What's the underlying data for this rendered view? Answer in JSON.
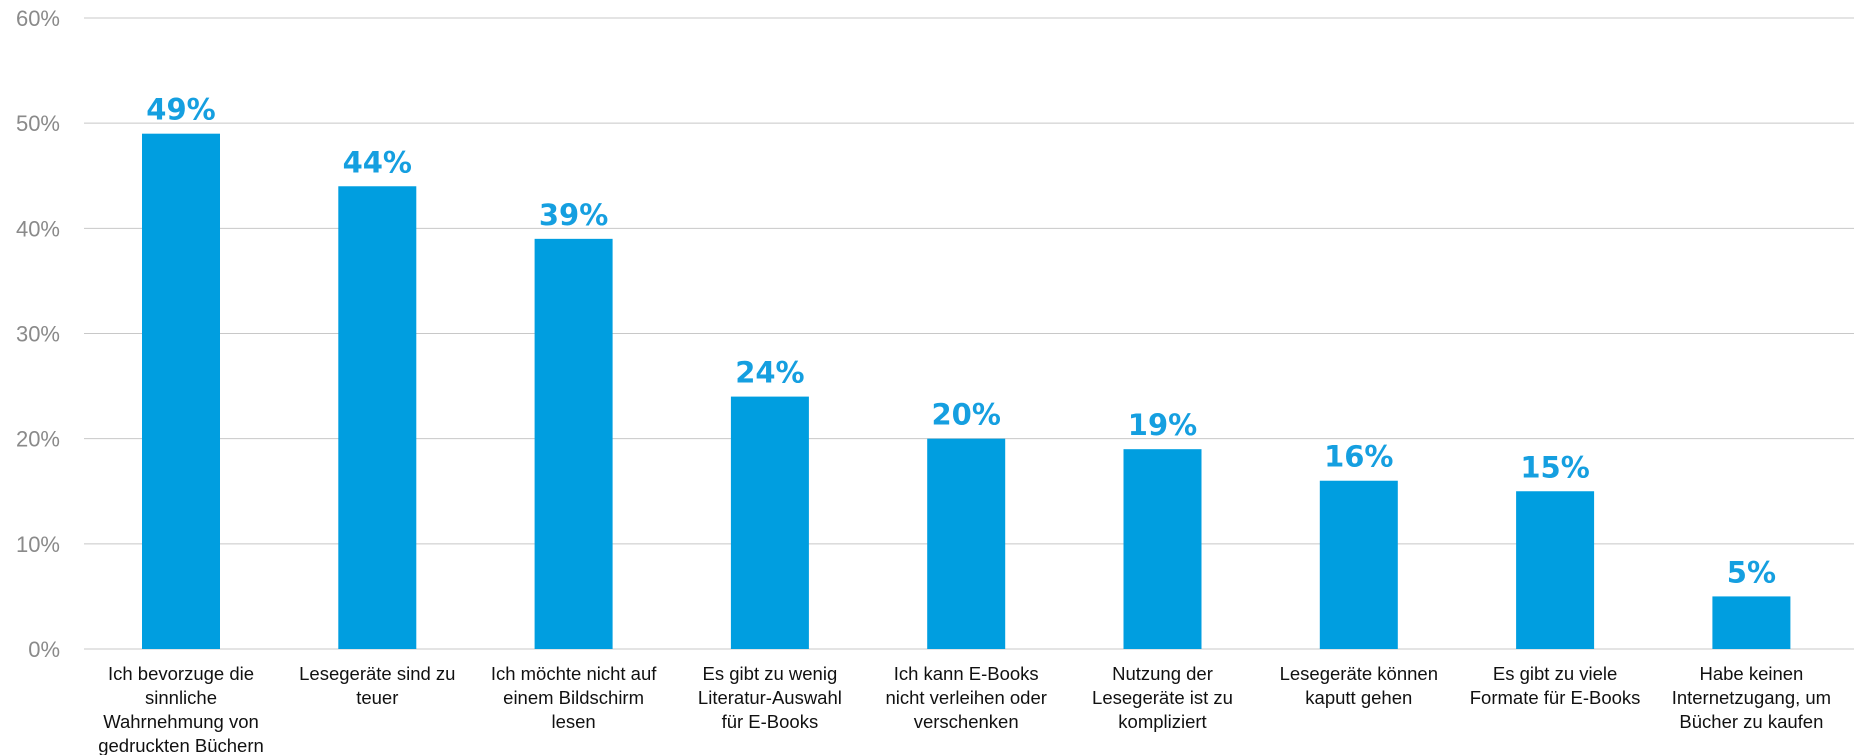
{
  "chart_data": {
    "type": "bar",
    "categories": [
      [
        "Ich bevorzuge die",
        "sinnliche",
        "Wahrnehmung von",
        "gedruckten Büchern"
      ],
      [
        "Lesegeräte sind zu",
        "teuer"
      ],
      [
        "Ich möchte nicht auf",
        "einem Bildschirm",
        "lesen"
      ],
      [
        "Es gibt zu wenig",
        "Literatur-Auswahl",
        "für E-Books"
      ],
      [
        "Ich kann E-Books",
        "nicht verleihen oder",
        "verschenken"
      ],
      [
        "Nutzung der",
        "Lesegeräte ist zu",
        "kompliziert"
      ],
      [
        "Lesegeräte können",
        "kaputt gehen"
      ],
      [
        "Es gibt zu viele",
        "Formate für E-Books"
      ],
      [
        "Habe keinen",
        "Internetzugang, um",
        "Bücher zu kaufen"
      ]
    ],
    "values": [
      49,
      44,
      39,
      24,
      20,
      19,
      16,
      15,
      5
    ],
    "value_labels": [
      "49%",
      "44%",
      "39%",
      "24%",
      "20%",
      "19%",
      "16%",
      "15%",
      "5%"
    ],
    "yticks": [
      "0%",
      "10%",
      "20%",
      "30%",
      "40%",
      "50%",
      "60%"
    ],
    "ylim": [
      0,
      60
    ],
    "grid": true,
    "colors": {
      "bar": "#009ee0",
      "value_label": "#159fe0",
      "grid": "#c8c8c8",
      "tick": "#8a8a8a",
      "category": "#111111"
    }
  }
}
